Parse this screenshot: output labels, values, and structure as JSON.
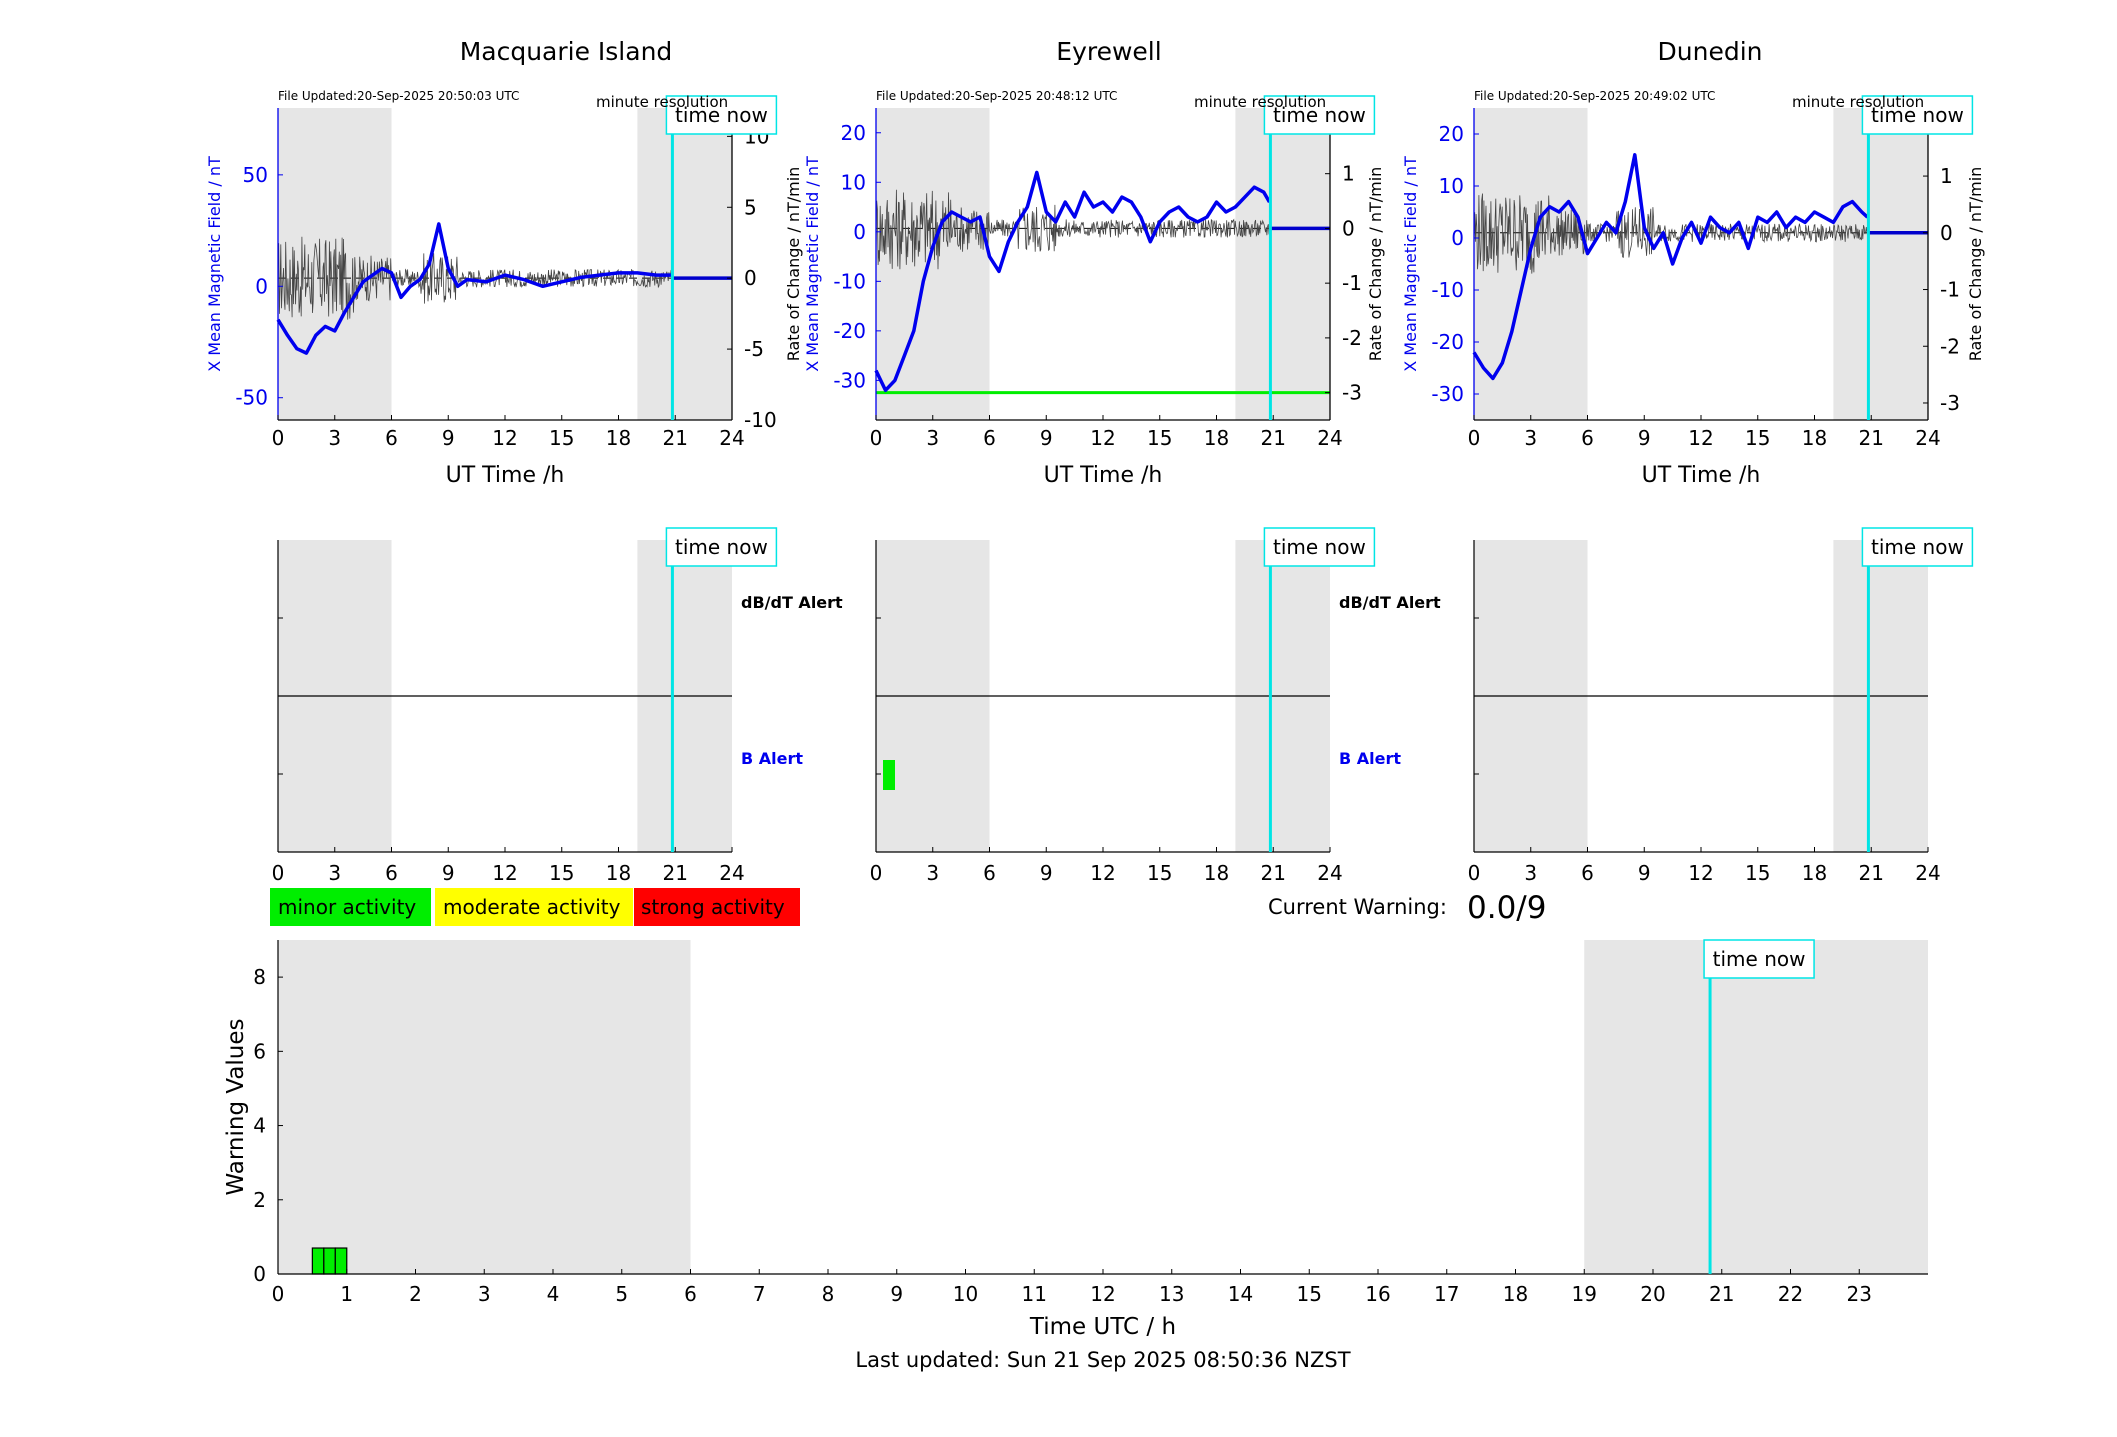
{
  "colors": {
    "shade": "#e6e6e6",
    "field": "#0000ee",
    "rate": "#444444",
    "now": "#00e5e5",
    "alert_green": "#00ee00",
    "minor": "#00ee00",
    "moderate": "#ffff00",
    "strong": "#ff0000"
  },
  "magnetometer_panels": [
    {
      "station": "Macquarie Island",
      "file_updated": "File Updated:20-Sep-2025 20:50:03 UTC",
      "resolution": "minute resolution",
      "time_now_label": "time now",
      "x_label": "UT Time /h",
      "y_left_label": "X Mean Magnetic Field / nT",
      "y_right_label": "",
      "x_ticks": [
        "0",
        "3",
        "6",
        "9",
        "12",
        "15",
        "18",
        "21",
        "24"
      ],
      "y_left_ticks": [
        "50",
        "0",
        "-50"
      ],
      "y_right_ticks": [
        "10",
        "5",
        "0",
        "-5",
        "-10"
      ]
    },
    {
      "station": "Eyrewell",
      "file_updated": "File Updated:20-Sep-2025 20:48:12 UTC",
      "resolution": "minute resolution",
      "time_now_label": "time now",
      "x_label": "UT Time /h",
      "y_left_label": "X Mean Magnetic Field / nT",
      "y_right_label": "Rate of Change / nT/min",
      "x_ticks": [
        "0",
        "3",
        "6",
        "9",
        "12",
        "15",
        "18",
        "21",
        "24"
      ],
      "y_left_ticks": [
        "20",
        "10",
        "0",
        "-10",
        "-20",
        "-30"
      ],
      "y_right_ticks": [
        "2",
        "1",
        "0",
        "-1",
        "-2",
        "-3"
      ]
    },
    {
      "station": "Dunedin",
      "file_updated": "File Updated:20-Sep-2025 20:49:02 UTC",
      "resolution": "minute resolution",
      "time_now_label": "time now",
      "x_label": "UT Time /h",
      "y_left_label": "X Mean Magnetic Field / nT",
      "y_right_label": "Rate of Change / nT/min",
      "x_ticks": [
        "0",
        "3",
        "6",
        "9",
        "12",
        "15",
        "18",
        "21",
        "24"
      ],
      "y_left_ticks": [
        "20",
        "10",
        "0",
        "-10",
        "-20",
        "-30"
      ],
      "y_right_ticks": [
        "2",
        "1",
        "0",
        "-1",
        "-2",
        "-3"
      ]
    }
  ],
  "alert_panels": [
    {
      "time_now_label": "time now",
      "dbdt_label": "dB/dT Alert",
      "b_label": "B Alert",
      "x_ticks": [
        "0",
        "3",
        "6",
        "9",
        "12",
        "15",
        "18",
        "21",
        "24"
      ]
    },
    {
      "time_now_label": "time now",
      "dbdt_label": "dB/dT Alert",
      "b_label": "B Alert",
      "x_ticks": [
        "0",
        "3",
        "6",
        "9",
        "12",
        "15",
        "18",
        "21",
        "24"
      ]
    },
    {
      "time_now_label": "time now",
      "dbdt_label": "",
      "b_label": "",
      "x_ticks": [
        "0",
        "3",
        "6",
        "9",
        "12",
        "15",
        "18",
        "21",
        "24"
      ]
    }
  ],
  "legend": {
    "minor": "minor activity",
    "moderate": "moderate activity",
    "strong": "strong activity"
  },
  "current_warning": {
    "label": "Current Warning:",
    "value": "0.0/9"
  },
  "warning_panel": {
    "time_now_label": "time now",
    "x_label": "Time UTC / h",
    "y_label": "Warning Values",
    "x_ticks": [
      "0",
      "1",
      "2",
      "3",
      "4",
      "5",
      "6",
      "7",
      "8",
      "9",
      "10",
      "11",
      "12",
      "13",
      "14",
      "15",
      "16",
      "17",
      "18",
      "19",
      "20",
      "21",
      "22",
      "23"
    ],
    "y_ticks": [
      "0",
      "2",
      "4",
      "6",
      "8"
    ]
  },
  "footer": {
    "last_updated": "Last updated: Sun 21 Sep 2025 08:50:36 NZST"
  },
  "chart_data": [
    {
      "type": "line",
      "title": "Macquarie Island",
      "xlabel": "UT Time /h",
      "ylabel": "X Mean Magnetic Field / nT",
      "xlim": [
        0,
        24
      ],
      "ylim": [
        -60,
        80
      ],
      "ylim_right": [
        -10,
        12
      ],
      "shaded_ranges_h": [
        [
          0,
          6
        ],
        [
          19,
          24
        ]
      ],
      "time_now_h": 20.85,
      "series": [
        {
          "name": "",
          "axis": "left",
          "x": [
            0,
            0.5,
            1,
            1.5,
            2,
            2.5,
            3,
            3.5,
            4,
            4.5,
            5,
            5.5,
            6,
            6.5,
            7,
            7.5,
            8,
            8.5,
            9,
            9.5,
            10,
            11,
            12,
            13,
            14,
            15,
            16,
            17,
            18,
            19,
            20,
            20.8
          ],
          "values": [
            -15,
            -22,
            -28,
            -30,
            -22,
            -18,
            -20,
            -12,
            -5,
            2,
            5,
            8,
            6,
            -5,
            0,
            3,
            10,
            28,
            8,
            0,
            3,
            2,
            5,
            3,
            0,
            2,
            4,
            5,
            6,
            6,
            5,
            5
          ]
        },
        {
          "name": "",
          "axis": "right",
          "x": [
            20.8,
            24
          ],
          "values": [
            0,
            0
          ]
        }
      ]
    },
    {
      "type": "line",
      "title": "Eyrewell",
      "xlabel": "UT Time /h",
      "ylabel": "X Mean Magnetic Field / nT",
      "y2label": "Rate of Change / nT/min",
      "xlim": [
        0,
        24
      ],
      "ylim": [
        -38,
        25
      ],
      "ylim_right": [
        -3.5,
        2.2
      ],
      "shaded_ranges_h": [
        [
          0,
          6
        ],
        [
          19,
          24
        ]
      ],
      "time_now_h": 20.85,
      "threshold_right": -3,
      "series": [
        {
          "name": "",
          "axis": "left",
          "x": [
            0,
            0.5,
            1,
            1.5,
            2,
            2.5,
            3,
            3.5,
            4,
            4.5,
            5,
            5.5,
            6,
            6.5,
            7,
            7.5,
            8,
            8.5,
            9,
            9.5,
            10,
            10.5,
            11,
            11.5,
            12,
            12.5,
            13,
            13.5,
            14,
            14.5,
            15,
            15.5,
            16,
            16.5,
            17,
            17.5,
            18,
            18.5,
            19,
            19.5,
            20,
            20.5,
            20.8
          ],
          "values": [
            -28,
            -32,
            -30,
            -25,
            -20,
            -10,
            -3,
            2,
            4,
            3,
            2,
            3,
            -5,
            -8,
            -2,
            2,
            5,
            12,
            4,
            2,
            6,
            3,
            8,
            5,
            6,
            4,
            7,
            6,
            3,
            -2,
            2,
            4,
            5,
            3,
            2,
            3,
            6,
            4,
            5,
            7,
            9,
            8,
            6
          ]
        },
        {
          "name": "",
          "axis": "right",
          "x": [
            20.8,
            24
          ],
          "values": [
            0,
            0
          ]
        }
      ]
    },
    {
      "type": "line",
      "title": "Dunedin",
      "xlabel": "UT Time /h",
      "ylabel": "X Mean Magnetic Field / nT",
      "y2label": "Rate of Change / nT/min",
      "xlim": [
        0,
        24
      ],
      "ylim": [
        -35,
        25
      ],
      "ylim_right": [
        -3.3,
        2.2
      ],
      "shaded_ranges_h": [
        [
          0,
          6
        ],
        [
          19,
          24
        ]
      ],
      "time_now_h": 20.85,
      "series": [
        {
          "name": "",
          "axis": "left",
          "x": [
            0,
            0.5,
            1,
            1.5,
            2,
            2.5,
            3,
            3.5,
            4,
            4.5,
            5,
            5.5,
            6,
            6.5,
            7,
            7.5,
            8,
            8.5,
            9,
            9.5,
            10,
            10.5,
            11,
            11.5,
            12,
            12.5,
            13,
            13.5,
            14,
            14.5,
            15,
            15.5,
            16,
            16.5,
            17,
            17.5,
            18,
            18.5,
            19,
            19.5,
            20,
            20.5,
            20.8
          ],
          "values": [
            -22,
            -25,
            -27,
            -24,
            -18,
            -10,
            -2,
            4,
            6,
            5,
            7,
            4,
            -3,
            0,
            3,
            1,
            7,
            16,
            2,
            -2,
            1,
            -5,
            0,
            3,
            -1,
            4,
            2,
            1,
            3,
            -2,
            4,
            3,
            5,
            2,
            4,
            3,
            5,
            4,
            3,
            6,
            7,
            5,
            4
          ]
        },
        {
          "name": "",
          "axis": "right",
          "x": [
            20.8,
            24
          ],
          "values": [
            0,
            0
          ]
        }
      ]
    },
    {
      "type": "bar",
      "title": "",
      "xlabel": "Time UTC / h",
      "ylabel": "Warning Values",
      "xlim": [
        0,
        24
      ],
      "ylim": [
        0,
        9
      ],
      "shaded_ranges_h": [
        [
          0,
          6
        ],
        [
          19,
          24
        ]
      ],
      "time_now_h": 20.83,
      "series": [
        {
          "name": "",
          "x": [
            0.583,
            0.75,
            0.917
          ],
          "values": [
            0.7,
            0.7,
            0.7
          ]
        }
      ]
    }
  ]
}
